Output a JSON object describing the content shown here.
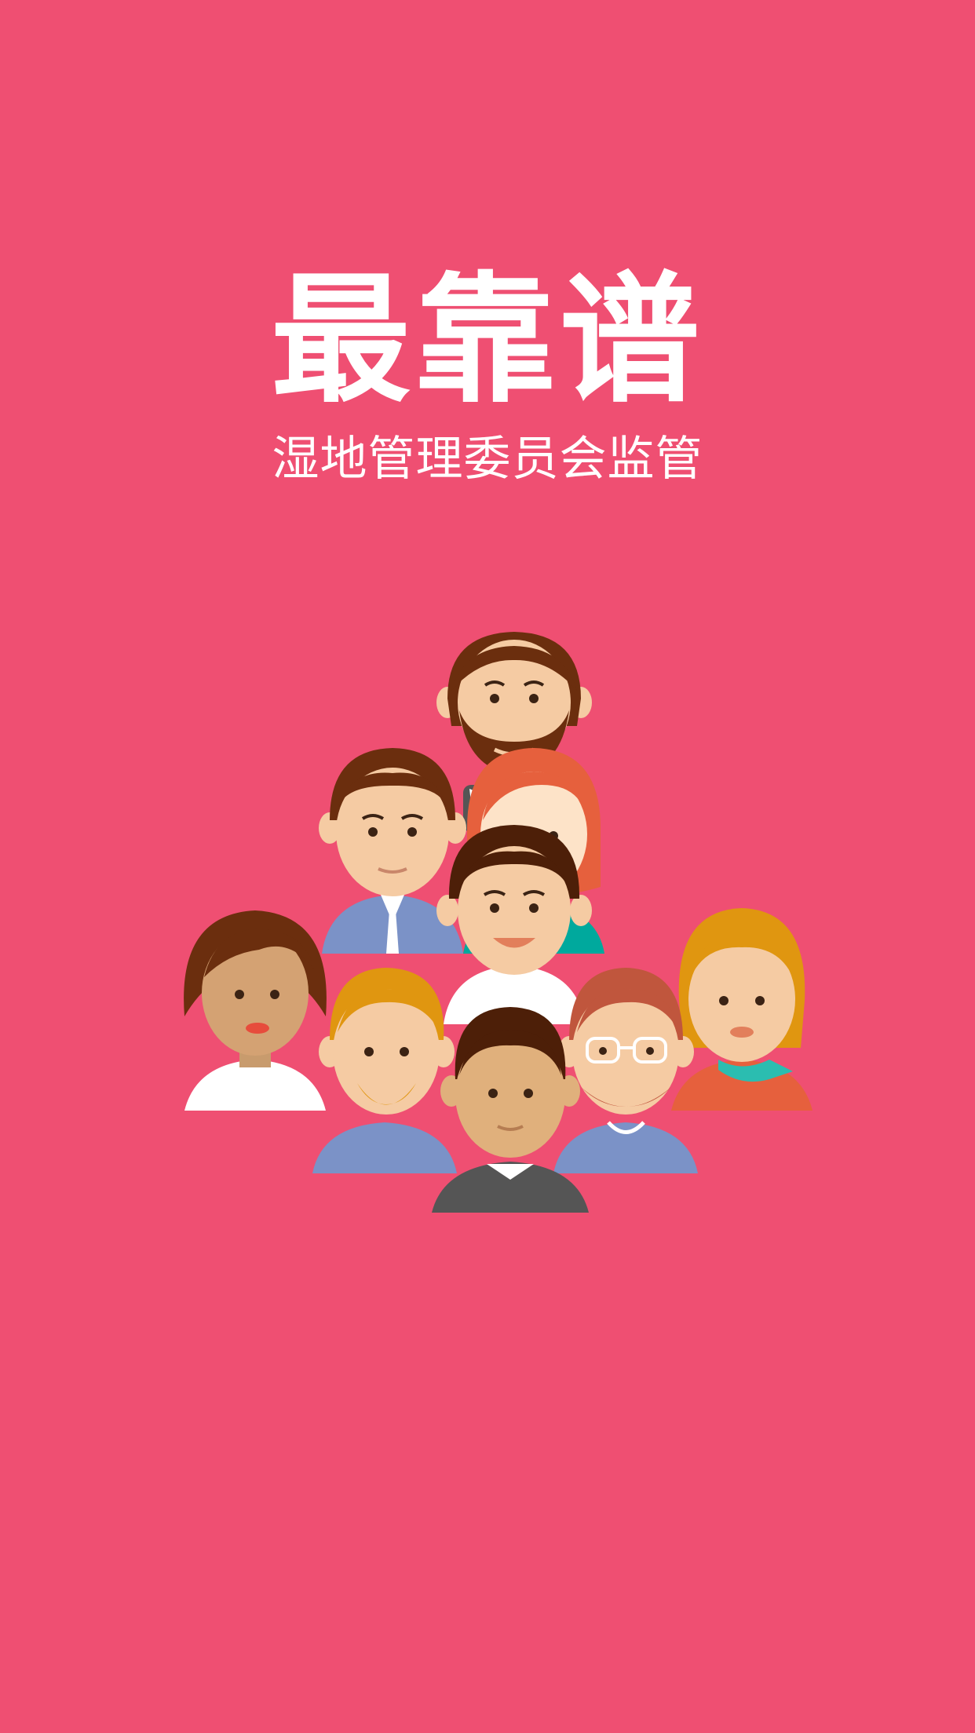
{
  "app": {
    "title": "最靠谱",
    "subtitle": "湿地管理委员会监管"
  },
  "illustration": {
    "name": "people-group-illustration",
    "people_count": 9
  },
  "colors": {
    "background": "#ef4f72",
    "text": "#ffffff"
  }
}
